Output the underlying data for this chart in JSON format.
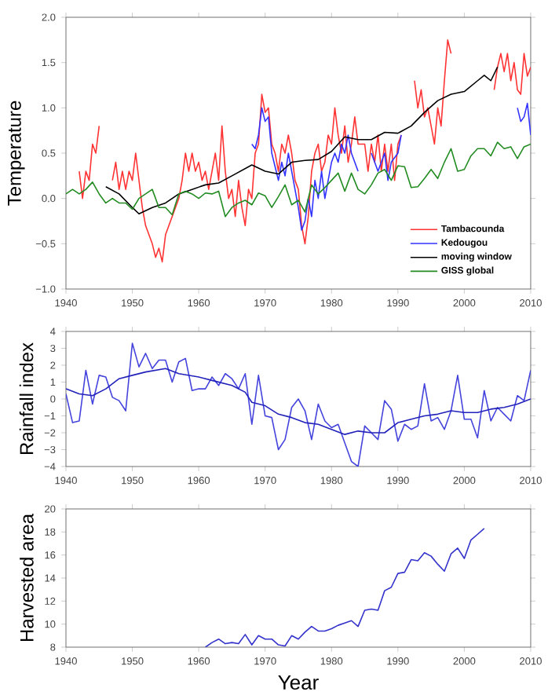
{
  "chart_data": [
    {
      "type": "line",
      "ylabel": "Temperature",
      "xlim": [
        1940,
        2010
      ],
      "xticks": [
        1940,
        1950,
        1960,
        1970,
        1980,
        1990,
        2000,
        2010
      ],
      "ylim": [
        -1.0,
        2.0
      ],
      "yticks": [
        {
          "value": -1.0,
          "label": "−1.0"
        },
        {
          "value": -0.5,
          "label": "−0.5"
        },
        {
          "value": 0.0,
          "label": "0.0"
        },
        {
          "value": 0.5,
          "label": "0.5"
        },
        {
          "value": 1.0,
          "label": "1.0"
        },
        {
          "value": 1.5,
          "label": "1.5"
        },
        {
          "value": 2.0,
          "label": "2.0"
        }
      ],
      "legend": "bottom right",
      "grid": false,
      "marker": "none",
      "line_style": "solid",
      "series": [
        {
          "name": "Tambacounda",
          "color": "#ff3333",
          "x": [
            1942,
            1942.5,
            1943,
            1943.5,
            1944,
            1944.5,
            1945,
            1946,
            1947,
            1947.5,
            1948,
            1948.5,
            1949,
            1949.5,
            1950,
            1950.5,
            1951,
            1951.5,
            1952,
            1952.5,
            1953,
            1953.5,
            1954,
            1954.5,
            1955,
            1955.5,
            1956,
            1957,
            1957.5,
            1958,
            1958.5,
            1959,
            1959.5,
            1960,
            1960.5,
            1961,
            1961.5,
            1962,
            1962.5,
            1963,
            1963.5,
            1964,
            1964.5,
            1965,
            1965.5,
            1966,
            1966.5,
            1967,
            1967.5,
            1968,
            1968.5,
            1969,
            1969.5,
            1970,
            1970.5,
            1971,
            1971.5,
            1972,
            1972.5,
            1973,
            1973.5,
            1974,
            1974.5,
            1975,
            1975.5,
            1976,
            1976.5,
            1977,
            1977.5,
            1978,
            1978.5,
            1979,
            1979.5,
            1980,
            1980.5,
            1981,
            1981.5,
            1982,
            1982.5,
            1983,
            1983.5,
            1984,
            1985,
            1985.5,
            1986,
            1986.5,
            1987,
            1987.5,
            1988,
            1988.5,
            1989,
            1989.5,
            1990,
            1990.5,
            1991.5,
            1992.5,
            1993,
            1993.5,
            1994,
            1994.5,
            1995,
            1995.5,
            1996,
            1996.5,
            1997,
            1997.5,
            1998,
            2001,
            2004.5,
            2005,
            2005.5,
            2006,
            2006.5,
            2007,
            2007.5,
            2008,
            2008.5,
            2009,
            2009.5,
            2010
          ],
          "values": [
            0.3,
            0.0,
            0.3,
            0.2,
            0.6,
            0.5,
            0.8,
            null,
            0.2,
            0.4,
            0.1,
            0.3,
            0.1,
            0.3,
            0.2,
            0.5,
            0.2,
            -0.1,
            -0.3,
            -0.4,
            -0.5,
            -0.65,
            -0.55,
            -0.7,
            -0.4,
            -0.3,
            -0.2,
            0.0,
            0.2,
            0.5,
            0.3,
            0.5,
            0.3,
            0.4,
            0.2,
            0.3,
            0.1,
            0.3,
            0.5,
            0.2,
            0.8,
            0.3,
            0.0,
            0.1,
            -0.2,
            0.2,
            -0.1,
            -0.3,
            0.1,
            0.0,
            0.5,
            0.6,
            1.15,
            0.95,
            1.0,
            0.6,
            0.5,
            0.3,
            0.6,
            0.5,
            0.7,
            0.5,
            0.2,
            0.1,
            -0.3,
            -0.5,
            -0.2,
            0.3,
            0.5,
            0.6,
            0.3,
            0.4,
            0.7,
            0.6,
            1.0,
            0.7,
            0.5,
            0.8,
            0.4,
            0.6,
            0.9,
            0.6,
            0.6,
            0.3,
            0.6,
            0.4,
            0.7,
            0.3,
            0.6,
            0.3,
            0.6,
            0.2,
            0.6,
            0.7,
            null,
            1.3,
            1.0,
            1.2,
            0.9,
            1.0,
            0.8,
            0.6,
            1.0,
            0.8,
            1.3,
            1.75,
            1.6,
            null,
            1.2,
            1.45,
            1.6,
            1.4,
            1.6,
            1.3,
            1.5,
            1.2,
            1.15,
            1.6,
            1.35,
            1.45
          ]
        },
        {
          "name": "Kedougou",
          "color": "#3333ff",
          "x": [
            1968,
            1968.5,
            1969,
            1969.5,
            1970,
            1970.5,
            1971,
            1971.5,
            1972,
            1972.5,
            1973,
            1973.5,
            1974,
            1974.5,
            1975,
            1975.5,
            1976,
            1976.5,
            1977,
            1977.5,
            1978,
            1978.5,
            1979,
            1979.5,
            1980,
            1980.5,
            1981,
            1981.5,
            1982,
            1982.5,
            1983,
            1983.5,
            1984,
            1985,
            1986,
            1987,
            1988,
            1988.5,
            1989,
            1990,
            1990.5,
            2000,
            2008,
            2008.5,
            2009,
            2009.5,
            2010
          ],
          "values": [
            0.6,
            0.55,
            0.7,
            1.0,
            0.85,
            0.9,
            0.5,
            0.35,
            0.2,
            0.4,
            0.25,
            0.5,
            0.3,
            0.1,
            -0.1,
            -0.35,
            -0.25,
            0.0,
            -0.2,
            0.2,
            0.0,
            0.3,
            0.0,
            0.2,
            0.4,
            0.5,
            0.4,
            0.6,
            0.5,
            0.7,
            0.5,
            0.4,
            0.3,
            null,
            0.5,
            0.3,
            0.5,
            0.2,
            0.4,
            0.5,
            0.7,
            null,
            1.0,
            0.85,
            0.9,
            1.05,
            0.7
          ]
        },
        {
          "name": "moving window",
          "color": "#000000",
          "x": [
            1946,
            1948,
            1950,
            1951,
            1953,
            1955,
            1957,
            1959,
            1961,
            1963,
            1965,
            1968,
            1970,
            1972,
            1974,
            1976,
            1978,
            1980,
            1982,
            1984,
            1986,
            1988,
            1990,
            1992,
            1994,
            1996,
            1998,
            2000,
            2002,
            2003,
            2004,
            2005
          ],
          "values": [
            0.13,
            0.05,
            -0.1,
            -0.17,
            -0.1,
            -0.05,
            0.05,
            0.1,
            0.15,
            0.17,
            0.25,
            0.37,
            0.3,
            0.27,
            0.4,
            0.42,
            0.43,
            0.52,
            0.68,
            0.65,
            0.65,
            0.73,
            0.72,
            0.8,
            0.95,
            1.08,
            1.15,
            1.18,
            1.3,
            1.36,
            1.3,
            1.45
          ]
        },
        {
          "name": "GISS global",
          "color": "#228b22",
          "x": [
            1940,
            1941,
            1942,
            1943,
            1944,
            1945,
            1946,
            1947,
            1948,
            1949,
            1950,
            1951,
            1952,
            1953,
            1954,
            1955,
            1956,
            1957,
            1958,
            1959,
            1960,
            1961,
            1962,
            1963,
            1964,
            1965,
            1966,
            1967,
            1968,
            1969,
            1970,
            1971,
            1972,
            1973,
            1974,
            1975,
            1976,
            1977,
            1978,
            1979,
            1980,
            1981,
            1982,
            1983,
            1984,
            1985,
            1986,
            1987,
            1988,
            1989,
            1990,
            1991,
            1992,
            1993,
            1994,
            1995,
            1996,
            1997,
            1998,
            1999,
            2000,
            2001,
            2002,
            2003,
            2004,
            2005,
            2006,
            2007,
            2008,
            2009,
            2010
          ],
          "values": [
            0.05,
            0.1,
            0.05,
            0.1,
            0.18,
            0.05,
            -0.05,
            0.0,
            -0.05,
            -0.05,
            -0.12,
            0.0,
            0.05,
            0.1,
            -0.1,
            -0.1,
            -0.18,
            0.05,
            0.08,
            0.05,
            0.0,
            0.06,
            0.05,
            0.08,
            -0.2,
            -0.1,
            -0.05,
            -0.02,
            -0.07,
            0.06,
            0.03,
            -0.1,
            0.02,
            0.15,
            -0.07,
            -0.02,
            -0.15,
            0.15,
            0.05,
            0.12,
            0.2,
            0.28,
            0.08,
            0.28,
            0.1,
            0.05,
            0.15,
            0.28,
            0.32,
            0.2,
            0.36,
            0.35,
            0.12,
            0.13,
            0.22,
            0.32,
            0.22,
            0.4,
            0.55,
            0.3,
            0.32,
            0.47,
            0.55,
            0.55,
            0.47,
            0.62,
            0.55,
            0.57,
            0.44,
            0.57,
            0.6
          ]
        }
      ]
    },
    {
      "type": "line",
      "ylabel": "Rainfall index",
      "xlim": [
        1940,
        2010
      ],
      "xticks": [
        1940,
        1950,
        1960,
        1970,
        1980,
        1990,
        2000,
        2010
      ],
      "ylim": [
        -4,
        4
      ],
      "yticks": [
        {
          "value": -4,
          "label": "−4"
        },
        {
          "value": -3,
          "label": "−3"
        },
        {
          "value": -2,
          "label": "−2"
        },
        {
          "value": -1,
          "label": "−1"
        },
        0,
        1,
        2,
        3,
        4
      ],
      "grid": false,
      "marker": "none",
      "line_style": "solid",
      "series": [
        {
          "color": "#4444dd",
          "x": [
            1940,
            1941,
            1942,
            1943,
            1944,
            1945,
            1946,
            1947,
            1948,
            1949,
            1950,
            1951,
            1952,
            1953,
            1954,
            1955,
            1956,
            1957,
            1958,
            1959,
            1960,
            1961,
            1962,
            1963,
            1964,
            1965,
            1966,
            1967,
            1968,
            1969,
            1970,
            1971,
            1972,
            1973,
            1974,
            1975,
            1976,
            1977,
            1978,
            1979,
            1980,
            1981,
            1982,
            1983,
            1984,
            1985,
            1986,
            1987,
            1988,
            1989,
            1990,
            1991,
            1992,
            1993,
            1994,
            1995,
            1996,
            1997,
            1998,
            1999,
            2000,
            2001,
            2002,
            2003,
            2004,
            2005,
            2006,
            2007,
            2008,
            2009,
            2010
          ],
          "values": [
            0.3,
            -1.4,
            -1.3,
            1.7,
            -0.3,
            1.4,
            1.3,
            0.1,
            -0.1,
            -0.7,
            3.3,
            1.9,
            2.7,
            1.8,
            2.3,
            2.3,
            1.0,
            2.2,
            2.4,
            0.5,
            0.6,
            0.6,
            1.3,
            0.8,
            1.5,
            1.2,
            0.6,
            1.5,
            -1.5,
            1.4,
            -1.0,
            -1.1,
            -3.0,
            -2.4,
            -0.5,
            0.0,
            -0.7,
            -2.4,
            -0.3,
            -1.3,
            -1.7,
            -1.5,
            -2.6,
            -3.7,
            -4.0,
            -1.6,
            -2.0,
            -2.4,
            -0.1,
            -0.6,
            -2.5,
            -1.5,
            -1.8,
            -1.6,
            0.9,
            -1.3,
            -1.1,
            -1.8,
            -0.7,
            1.4,
            -1.2,
            -1.2,
            -2.3,
            0.5,
            -1.3,
            -0.5,
            -0.9,
            -1.3,
            0.2,
            -0.1,
            1.7
          ]
        },
        {
          "color": "#2222bb",
          "x": [
            1940,
            1942,
            1944,
            1946,
            1948,
            1950,
            1952,
            1955,
            1957,
            1960,
            1962,
            1965,
            1967,
            1968,
            1970,
            1972,
            1974,
            1976,
            1978,
            1980,
            1982,
            1984,
            1986,
            1988,
            1990,
            1992,
            1994,
            1996,
            1998,
            2000,
            2002,
            2004,
            2006,
            2008,
            2010
          ],
          "values": [
            0.6,
            0.3,
            0.2,
            0.6,
            1.2,
            1.4,
            1.6,
            1.8,
            1.5,
            1.3,
            1.1,
            0.8,
            0.4,
            -0.2,
            -0.4,
            -0.9,
            -1.1,
            -1.4,
            -1.5,
            -1.8,
            -2.1,
            -1.9,
            -2.0,
            -2.0,
            -1.4,
            -1.2,
            -1.0,
            -0.9,
            -0.7,
            -0.8,
            -0.8,
            -0.6,
            -0.5,
            -0.3,
            0.0
          ]
        }
      ]
    },
    {
      "type": "line",
      "ylabel": "Harvested area",
      "xlabel": "Year",
      "xlim": [
        1940,
        2010
      ],
      "xticks": [
        1940,
        1950,
        1960,
        1970,
        1980,
        1990,
        2000,
        2010
      ],
      "ylim": [
        8,
        20
      ],
      "yticks": [
        8,
        10,
        12,
        14,
        16,
        18,
        20
      ],
      "grid": false,
      "marker": "none",
      "line_style": "solid",
      "series": [
        {
          "color": "#3333cc",
          "x": [
            1961,
            1962,
            1963,
            1964,
            1965,
            1966,
            1967,
            1968,
            1969,
            1970,
            1971,
            1972,
            1973,
            1974,
            1975,
            1976,
            1977,
            1978,
            1979,
            1980,
            1981,
            1982,
            1983,
            1984,
            1985,
            1986,
            1987,
            1988,
            1989,
            1990,
            1991,
            1992,
            1993,
            1994,
            1995,
            1996,
            1997,
            1998,
            1999,
            2000,
            2001,
            2002,
            2003
          ],
          "values": [
            8.0,
            8.4,
            8.7,
            8.3,
            8.4,
            8.3,
            9.1,
            8.2,
            9.0,
            8.7,
            8.7,
            8.2,
            8.1,
            9.0,
            8.7,
            9.3,
            9.8,
            9.4,
            9.4,
            9.6,
            9.9,
            10.1,
            10.3,
            9.8,
            11.2,
            11.3,
            11.2,
            12.9,
            13.2,
            14.4,
            14.5,
            15.6,
            15.5,
            16.2,
            15.9,
            15.2,
            14.6,
            16.1,
            16.6,
            15.7,
            17.3,
            17.8,
            18.3
          ]
        }
      ]
    }
  ]
}
